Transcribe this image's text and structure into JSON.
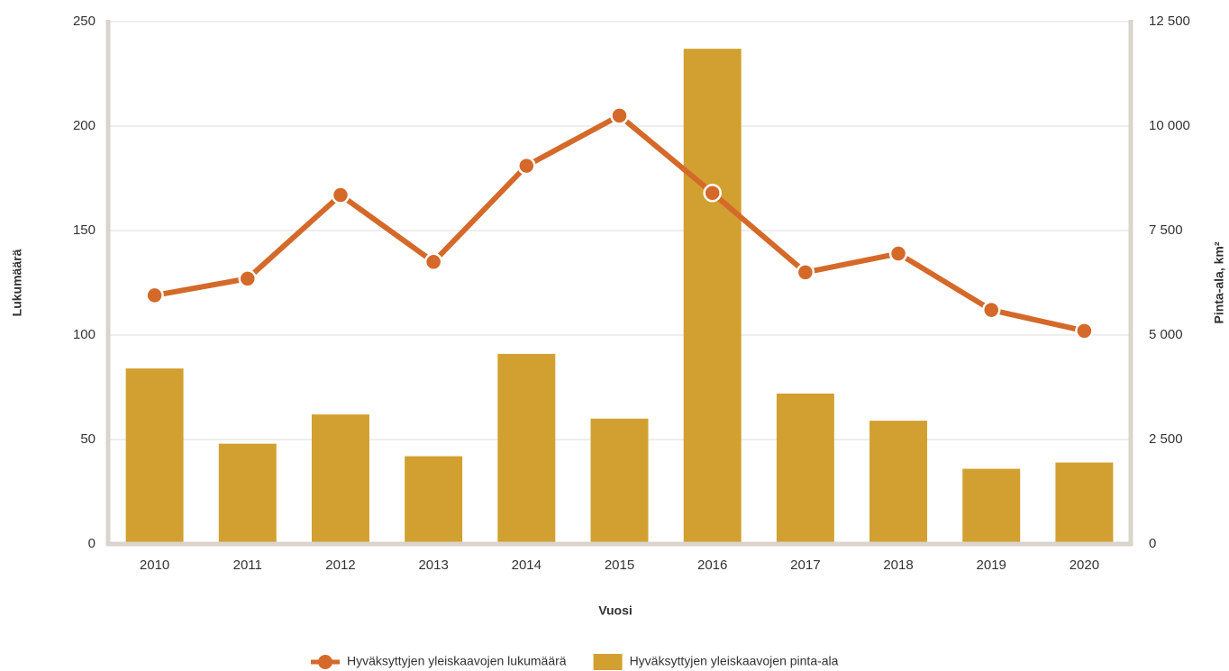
{
  "chart_data": {
    "type": "combo",
    "categories": [
      "2010",
      "2011",
      "2012",
      "2013",
      "2014",
      "2015",
      "2016",
      "2017",
      "2018",
      "2019",
      "2020"
    ],
    "x_label": "Vuosi",
    "y_label": "Lukumäärä",
    "y2_label": "Pinta-ala, km²",
    "ylim": [
      0,
      250
    ],
    "yticks": [
      0,
      50,
      100,
      150,
      200,
      250
    ],
    "y2lim": [
      0,
      12500
    ],
    "y2ticks": [
      0,
      {
        "value": 2500,
        "label": "2 500"
      },
      {
        "value": 5000,
        "label": "5 000"
      },
      {
        "value": 7500,
        "label": "7 500"
      },
      {
        "value": 10000,
        "label": "10 000"
      },
      {
        "value": 12500,
        "label": "12 500"
      }
    ],
    "grid": true,
    "legend": "bottom",
    "series": [
      {
        "name": "Hyväksyttyjen yleiskaavojen lukumäärä",
        "type": "line",
        "color": "#d4692a",
        "values": [
          119,
          127,
          167,
          135,
          181,
          205,
          168,
          130,
          139,
          112,
          102
        ]
      },
      {
        "name": "Hyväksyttyjen yleiskaavojen pinta-ala",
        "type": "bar",
        "axis": "y2",
        "color": "#d1a030",
        "values": [
          4200,
          2400,
          3100,
          2100,
          4550,
          3000,
          11850,
          3600,
          2950,
          1800,
          1950
        ]
      }
    ]
  }
}
